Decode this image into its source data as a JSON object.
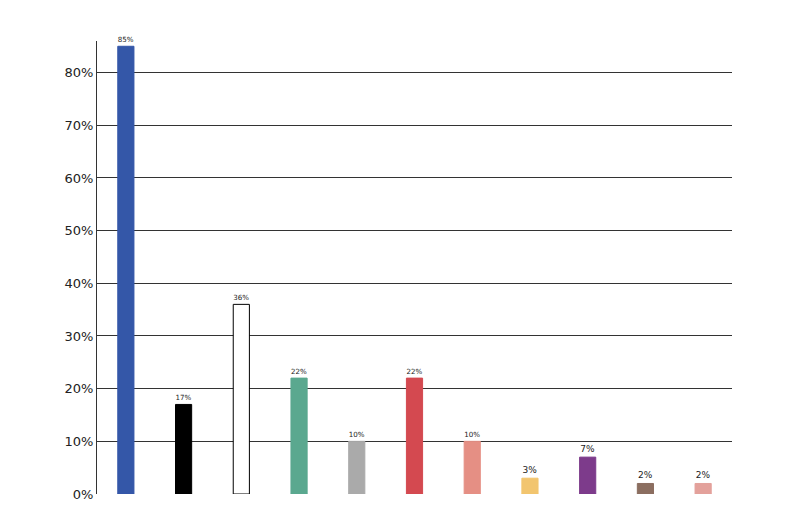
{
  "chart_data": {
    "type": "bar",
    "categories": [
      null,
      null,
      null,
      null,
      null,
      null,
      null,
      null,
      null,
      null,
      null
    ],
    "values": [
      85,
      17,
      36,
      22,
      10,
      22,
      10,
      3,
      7,
      2,
      2
    ],
    "value_labels": [
      "85%",
      "17%",
      "36%",
      "22%",
      "10%",
      "22%",
      "10%",
      "3%",
      "7%",
      "2%",
      "2%"
    ],
    "colors": [
      "#3457a8",
      "#000000",
      "#ffffff",
      "#5aa88f",
      "#aaaaaa",
      "#d44950",
      "#e58f84",
      "#f2c56f",
      "#7d3b8b",
      "#8b6e60",
      "#e3a19b"
    ],
    "ylim": [
      0,
      86
    ],
    "yticks": [
      {
        "value": 0,
        "label": "0%"
      },
      {
        "value": 10,
        "label": "10%"
      },
      {
        "value": 20,
        "label": "20%"
      },
      {
        "value": 30,
        "label": "30%"
      },
      {
        "value": 40,
        "label": "40%"
      },
      {
        "value": 50,
        "label": "50%"
      },
      {
        "value": 60,
        "label": "60%"
      },
      {
        "value": 70,
        "label": "70%"
      },
      {
        "value": 80,
        "label": "80%"
      }
    ],
    "grid": true,
    "data_labels": true,
    "tick_labels": "y"
  }
}
